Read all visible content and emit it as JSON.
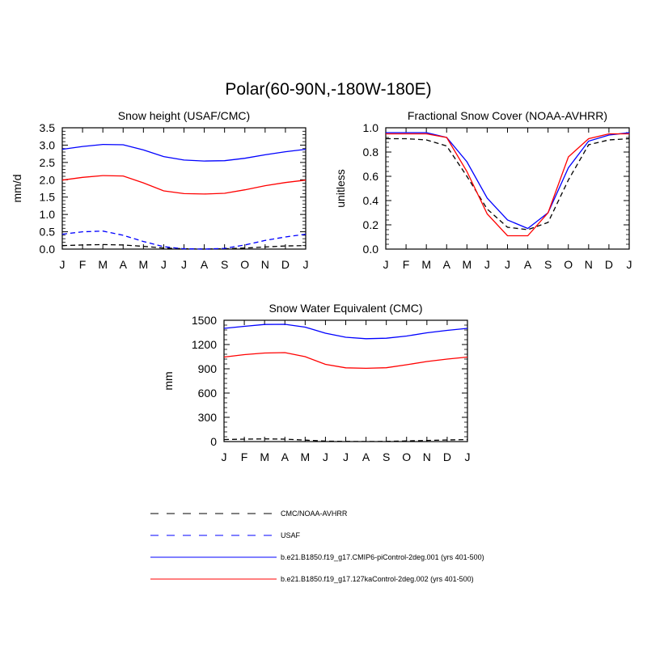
{
  "figure": {
    "title": "Polar(60-90N,-180W-180E)",
    "legend": [
      {
        "label": "CMC/NOAA-AVHRR",
        "color": "#000000",
        "dash": true
      },
      {
        "label": "USAF",
        "color": "#0000ff",
        "dash": true
      },
      {
        "label": "b.e21.B1850.f19_g17.CMIP6-piControl-2deg.001 (yrs 401-500)",
        "color": "#0000ff",
        "dash": false
      },
      {
        "label": "b.e21.B1850.f19_g17.127kaControl-2deg.002 (yrs 401-500)",
        "color": "#ff0000",
        "dash": false
      }
    ]
  },
  "chart_data": [
    {
      "id": "snow-height",
      "type": "line",
      "title": "Snow height (USAF/CMC)",
      "xlabel": "",
      "ylabel": "mm/d",
      "categories": [
        "J",
        "F",
        "M",
        "A",
        "M",
        "J",
        "J",
        "A",
        "S",
        "O",
        "N",
        "D",
        "J"
      ],
      "ylim": [
        0,
        3.5
      ],
      "yticks": [
        0,
        0.5,
        1.0,
        1.5,
        2.0,
        2.5,
        3.0,
        3.5
      ],
      "ytick_labels": [
        "0.0",
        "0.5",
        "1.0",
        "1.5",
        "2.0",
        "2.5",
        "3.0",
        "3.5"
      ],
      "series": [
        {
          "color": "#000000",
          "dash": true,
          "values": [
            0.1,
            0.12,
            0.13,
            0.12,
            0.08,
            0.03,
            0.01,
            0.0,
            0.01,
            0.03,
            0.06,
            0.09,
            0.1
          ]
        },
        {
          "color": "#0000ff",
          "dash": true,
          "values": [
            0.43,
            0.5,
            0.52,
            0.4,
            0.22,
            0.07,
            0.01,
            0.0,
            0.02,
            0.12,
            0.25,
            0.35,
            0.43
          ]
        },
        {
          "color": "#0000ff",
          "dash": false,
          "values": [
            2.88,
            2.96,
            3.02,
            3.01,
            2.86,
            2.67,
            2.57,
            2.54,
            2.55,
            2.62,
            2.72,
            2.81,
            2.88
          ]
        },
        {
          "color": "#ff0000",
          "dash": false,
          "values": [
            1.99,
            2.07,
            2.12,
            2.11,
            1.91,
            1.68,
            1.6,
            1.59,
            1.61,
            1.71,
            1.83,
            1.92,
            1.99
          ]
        }
      ]
    },
    {
      "id": "fractional-snow-cover",
      "type": "line",
      "title": "Fractional Snow Cover (NOAA-AVHRR)",
      "xlabel": "",
      "ylabel": "unitless",
      "categories": [
        "J",
        "F",
        "M",
        "A",
        "M",
        "J",
        "J",
        "A",
        "S",
        "O",
        "N",
        "D",
        "J"
      ],
      "ylim": [
        0,
        1.0
      ],
      "yticks": [
        0,
        0.2,
        0.4,
        0.6,
        0.8,
        1.0
      ],
      "ytick_labels": [
        "0.0",
        "0.2",
        "0.4",
        "0.6",
        "0.8",
        "1.0"
      ],
      "series": [
        {
          "color": "#000000",
          "dash": true,
          "values": [
            0.91,
            0.91,
            0.9,
            0.85,
            0.6,
            0.33,
            0.18,
            0.16,
            0.22,
            0.57,
            0.86,
            0.9,
            0.91
          ]
        },
        {
          "color": "#0000ff",
          "dash": false,
          "values": [
            0.96,
            0.96,
            0.96,
            0.92,
            0.72,
            0.42,
            0.24,
            0.17,
            0.3,
            0.67,
            0.89,
            0.94,
            0.96
          ]
        },
        {
          "color": "#ff0000",
          "dash": false,
          "values": [
            0.95,
            0.95,
            0.95,
            0.92,
            0.64,
            0.29,
            0.11,
            0.11,
            0.3,
            0.76,
            0.91,
            0.95,
            0.95
          ]
        }
      ]
    },
    {
      "id": "snow-water-equivalent",
      "type": "line",
      "title": "Snow Water Equivalent (CMC)",
      "xlabel": "",
      "ylabel": "mm",
      "categories": [
        "J",
        "F",
        "M",
        "A",
        "M",
        "J",
        "J",
        "A",
        "S",
        "O",
        "N",
        "D",
        "J"
      ],
      "ylim": [
        0,
        1500
      ],
      "yticks": [
        0,
        300,
        600,
        900,
        1200,
        1500
      ],
      "ytick_labels": [
        "0",
        "300",
        "600",
        "900",
        "1200",
        "1500"
      ],
      "series": [
        {
          "color": "#000000",
          "dash": true,
          "values": [
            25,
            30,
            33,
            30,
            18,
            6,
            2,
            1,
            2,
            8,
            14,
            20,
            25
          ]
        },
        {
          "color": "#0000ff",
          "dash": false,
          "values": [
            1400,
            1425,
            1448,
            1450,
            1415,
            1340,
            1290,
            1272,
            1278,
            1305,
            1345,
            1375,
            1400
          ]
        },
        {
          "color": "#ff0000",
          "dash": false,
          "values": [
            1045,
            1075,
            1095,
            1100,
            1050,
            955,
            912,
            906,
            913,
            950,
            990,
            1020,
            1045
          ]
        }
      ]
    }
  ]
}
